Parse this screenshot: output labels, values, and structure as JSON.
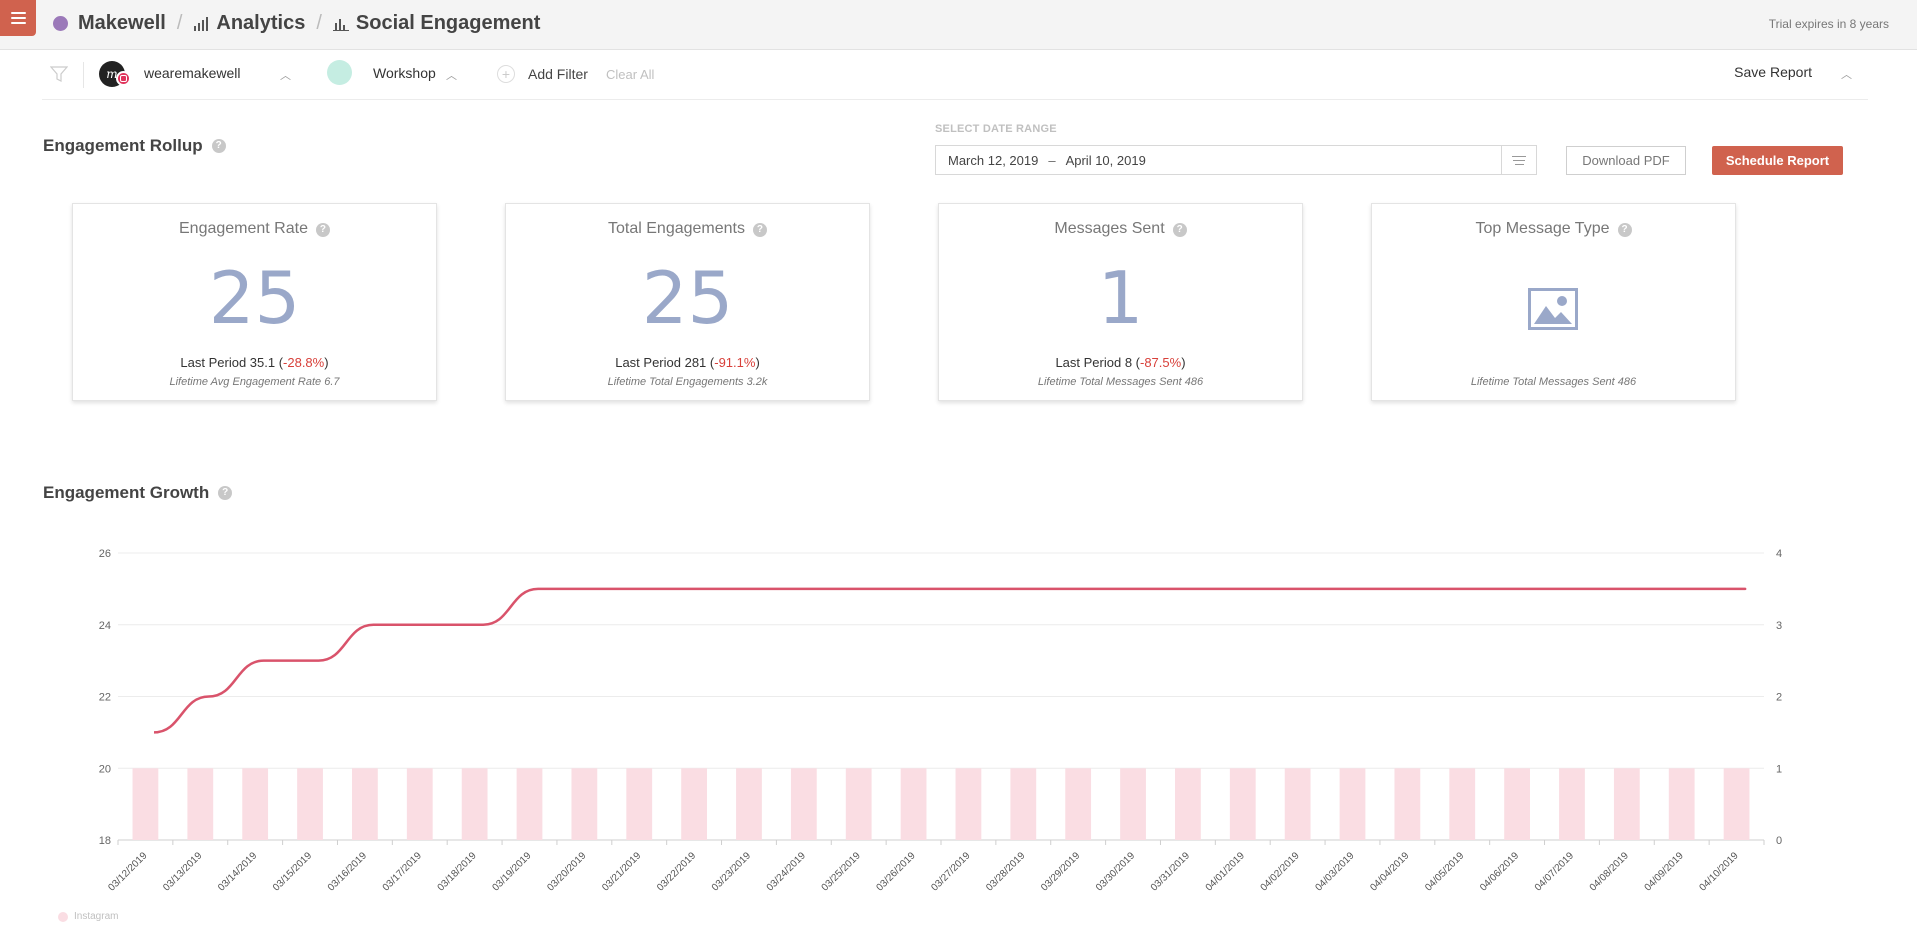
{
  "header": {
    "brand": "Makewell",
    "crumb_analytics": "Analytics",
    "crumb_page": "Social Engagement",
    "trial": "Trial expires in 8 years"
  },
  "filters": {
    "account": "wearemakewell",
    "workshop": "Workshop",
    "add_filter": "Add Filter",
    "clear_all": "Clear All",
    "save_report": "Save Report"
  },
  "rollup": {
    "title": "Engagement Rollup",
    "date_label": "SELECT DATE RANGE",
    "date_start": "March 12, 2019",
    "date_end": "April 10, 2019",
    "download_pdf": "Download PDF",
    "schedule_report": "Schedule Report",
    "cards": [
      {
        "title": "Engagement Rate",
        "value": "25",
        "last_prefix": "Last Period 35.1 (",
        "change": "-28.8%",
        "last_suffix": ")",
        "lifetime": "Lifetime Avg Engagement Rate 6.7"
      },
      {
        "title": "Total Engagements",
        "value": "25",
        "last_prefix": "Last Period 281 (",
        "change": "-91.1%",
        "last_suffix": ")",
        "lifetime": "Lifetime Total Engagements 3.2k"
      },
      {
        "title": "Messages Sent",
        "value": "1",
        "last_prefix": "Last Period 8 (",
        "change": "-87.5%",
        "last_suffix": ")",
        "lifetime": "Lifetime Total Messages Sent 486"
      },
      {
        "title": "Top Message Type",
        "icon": "image-icon",
        "lifetime": "Lifetime Total Messages Sent 486"
      }
    ]
  },
  "growth": {
    "title": "Engagement Growth"
  },
  "colors": {
    "accent": "#d0624e",
    "line": "#d9536b",
    "bar": "#fadde3",
    "value": "#9aa8c9",
    "negative": "#d8403a"
  },
  "chart_data": {
    "type": "bar",
    "categories": [
      "03/12/2019",
      "03/13/2019",
      "03/14/2019",
      "03/15/2019",
      "03/16/2019",
      "03/17/2019",
      "03/18/2019",
      "03/19/2019",
      "03/20/2019",
      "03/21/2019",
      "03/22/2019",
      "03/23/2019",
      "03/24/2019",
      "03/25/2019",
      "03/26/2019",
      "03/27/2019",
      "03/28/2019",
      "03/29/2019",
      "03/30/2019",
      "03/31/2019",
      "04/01/2019",
      "04/02/2019",
      "04/03/2019",
      "04/04/2019",
      "04/05/2019",
      "04/06/2019",
      "04/07/2019",
      "04/08/2019",
      "04/09/2019",
      "04/10/2019"
    ],
    "series": [
      {
        "name": "Instagram",
        "type": "bar",
        "axis": "right",
        "values": [
          1,
          1,
          1,
          1,
          1,
          1,
          1,
          1,
          1,
          1,
          1,
          1,
          1,
          1,
          1,
          1,
          1,
          1,
          1,
          1,
          1,
          1,
          1,
          1,
          1,
          1,
          1,
          1,
          1,
          1
        ]
      },
      {
        "type": "line",
        "axis": "left",
        "values": [
          21,
          22,
          23,
          23,
          24,
          24,
          24,
          25,
          25,
          25,
          25,
          25,
          25,
          25,
          25,
          25,
          25,
          25,
          25,
          25,
          25,
          25,
          25,
          25,
          25,
          25,
          25,
          25,
          25,
          25
        ]
      }
    ],
    "y_left": {
      "ylim": [
        18,
        26
      ],
      "ticks": [
        18,
        20,
        22,
        24,
        26
      ]
    },
    "y_right": {
      "ylim": [
        0,
        4
      ],
      "ticks": [
        0,
        1,
        2,
        3,
        4
      ]
    },
    "legend": "bottom-left",
    "grid": true
  }
}
